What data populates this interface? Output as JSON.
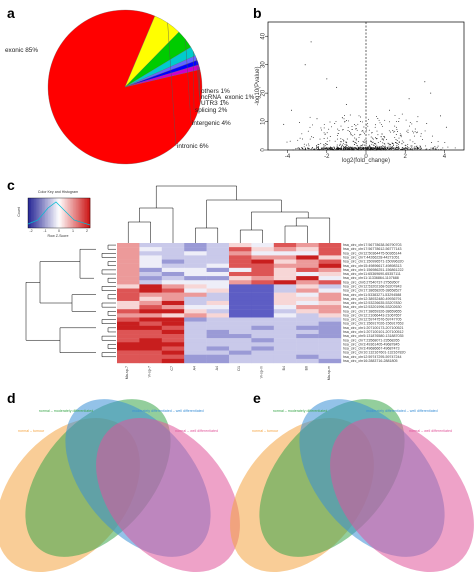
{
  "panels": {
    "a": "a",
    "b": "b",
    "c": "c",
    "d": "d",
    "e": "e"
  },
  "chart_data": [
    {
      "type": "pie",
      "panel": "a",
      "labels": [
        "exonic 85%",
        "intronic 6%",
        "intergenic 4%",
        "splicing 2%",
        "UTR3 1%",
        "ncRNA_exonic 1%",
        "others 1%"
      ],
      "values": [
        85,
        6,
        4,
        2,
        1,
        1,
        1
      ],
      "colors": [
        "#ff0000",
        "#ffff00",
        "#00cc00",
        "#00cccc",
        "#6666ff",
        "#0000ff",
        "#cc00cc"
      ]
    },
    {
      "type": "scatter",
      "panel": "b",
      "xlabel": "log2(fold_change)",
      "ylabel": "-log10(Pvalue)",
      "xticks": [
        "-4",
        "-2",
        "0",
        "2",
        "4"
      ],
      "yticks": [
        "0",
        "10",
        "20",
        "30",
        "40"
      ],
      "xlim": [
        -5,
        5
      ],
      "ylim": [
        0,
        45
      ]
    },
    {
      "type": "heatmap",
      "panel": "c",
      "color_key_title": "Color Key and Histogram",
      "color_key_xlabel": "Row Z-Score",
      "color_key_ylabel": "Count",
      "color_key_ticks": [
        "-2",
        "-1",
        "0",
        "1",
        "2"
      ],
      "columns": [
        "Ma-sp-7",
        "Vi-sp-7",
        "C7",
        "A4",
        "A4",
        "D1",
        "Vi-sp-m",
        "B4",
        "B6",
        "Ma-sp-m"
      ],
      "rows": [
        "hsa_circ_chr17:56778638-56790703",
        "hsa_circ_chr17:56778612-56777143",
        "hsa_circ_chr12:50364475-50365144",
        "hsa_circ_chr7:44266228-44271051",
        "hsa_circ_chr1:150996571-150996320",
        "hsa_circ_chr15:49896617-49898313",
        "hsa_circ_chr1:156986251-156861222",
        "hsa_circ_chr11:65369690-65357111",
        "hsa_circ_chr11:11336864-1107688",
        "hsa_circ_chr6:27540737-27569507",
        "hsa_circ_chr12:53202168-53207843",
        "hsa_circ_chr17:38658205-38658527",
        "hsa_circ_chr11:53383271-53294588",
        "hsa_circ_chr12:38932480-49936791",
        "hsa_circ_chr12:53226635-53207830",
        "hsa_circ_chr12:53201996-53202630",
        "hsa_circ_chr17:38659326-38659655",
        "hsa_circ_chr12:21066443-21067657",
        "hsa_circ_chr12:59747576-59747705",
        "hsa_circ_chr1:156917026-156917653",
        "hsa_circ_chr1:207100173-207100521",
        "hsa_circ_chr1:207100101-207100512",
        "hsa_circ_chr5:131876580-131887035",
        "hsa_circ_chr7:23568071-23568265",
        "hsa_circ_chr3:49361405-49687845",
        "hsa_circ_chr3:49686667-49687473",
        "hsa_circ_chr10:132167601-132167820",
        "hsa_circ_chr12:59747295-59747244",
        "hsa_circ_chr16:2883716-2881805"
      ]
    },
    {
      "type": "venn",
      "panel": "d",
      "sets": [
        "normal – tumour",
        "normal – moderately differentiated",
        "moderately differentiated – well differentiated",
        "normal – well differentiated"
      ],
      "colors": [
        "#f4a442",
        "#3aa64a",
        "#3a8fd6",
        "#e0559a"
      ]
    },
    {
      "type": "venn",
      "panel": "e",
      "sets": [
        "normal – tumour",
        "normal – moderately differentiated",
        "moderately differentiated – well differentiated",
        "normal – well differentiated"
      ],
      "colors": [
        "#f4a442",
        "#3aa64a",
        "#3a8fd6",
        "#e0559a"
      ]
    }
  ]
}
